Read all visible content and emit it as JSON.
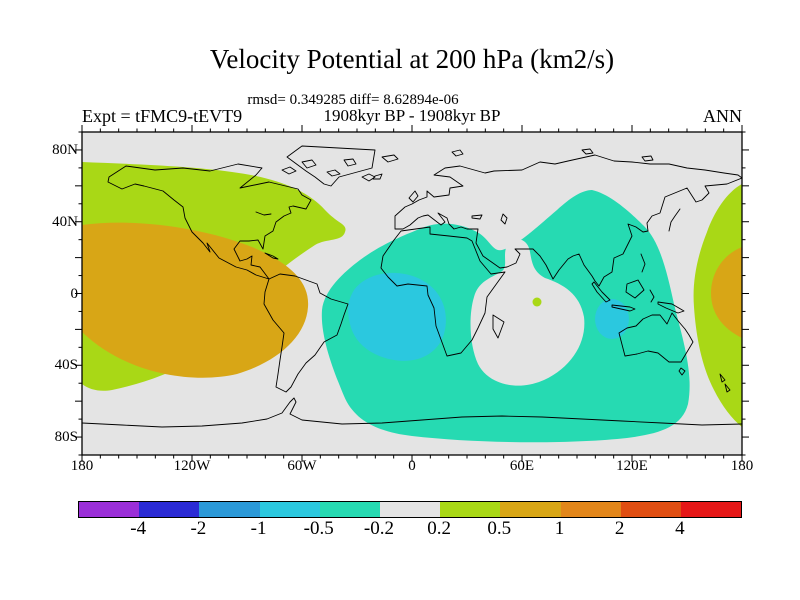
{
  "header": {
    "title": "Velocity Potential at 200 hPa (km2/s)",
    "stats_line": "rmsd= 0.349285 diff= 8.62894e-06",
    "run_line": "1908kyr BP - 1908kyr BP",
    "experiment_label": "Expt = tFMC9-tEVT9",
    "season_label": "ANN"
  },
  "chart_data": {
    "type": "heatmap",
    "subtype": "filled-contour-world-map",
    "title": "Velocity Potential at 200 hPa (km2/s)",
    "variable": "velocity potential",
    "pressure_level": "200 hPa",
    "units": "km2/s",
    "rmsd": 0.349285,
    "diff": "8.62894e-06",
    "experiment": "tFMC9-tEVT9",
    "period": "1908kyr BP - 1908kyr BP",
    "season": "ANN",
    "projection": "equirectangular",
    "x_axis": {
      "labels": [
        "180",
        "120W",
        "60W",
        "0",
        "60E",
        "120E",
        "180"
      ],
      "range_deg": [
        -180,
        180
      ],
      "minor_tick_deg": 10,
      "major_tick_deg": 60
    },
    "y_axis": {
      "ticks": [
        {
          "label": "80N",
          "lat": 80
        },
        {
          "label": "40N",
          "lat": 40
        },
        {
          "label": "0",
          "lat": 0
        },
        {
          "label": "40S",
          "lat": -40
        },
        {
          "label": "80S",
          "lat": -80
        }
      ],
      "range_deg": [
        -90,
        90
      ],
      "minor_tick_deg": 10,
      "major_tick_deg": 20
    },
    "contour_levels": [
      -4,
      -2,
      -1,
      -0.5,
      -0.2,
      0.2,
      0.5,
      1,
      2,
      4
    ],
    "colorbar": {
      "colors": [
        "#9B2FD8",
        "#2B2BD5",
        "#2B99D8",
        "#2BC8DF",
        "#26DAB2",
        "#E4E4E4",
        "#A9D816",
        "#D8A616",
        "#E2861A",
        "#E04E12",
        "#E51717"
      ],
      "boundary_labels": [
        "-4",
        "-2",
        "-1",
        "-0.5",
        "-0.2",
        "0.2",
        "0.5",
        "1",
        "2",
        "4"
      ]
    },
    "fill_colors_used_on_map": {
      "background_-0.2_to_0.2": "#E4E4E4",
      "teal_-0.5_to_-0.2": "#26DAB2",
      "cyan_-1_to_-0.5": "#2BC8DF",
      "yellowgreen_0.2_to_0.5": "#A9D816",
      "gold_0.5_to_1": "#D8A616"
    },
    "filled_regions": [
      {
        "level_range": "0.5 to 1",
        "color": "#D8A616",
        "where": "large blob over central/eastern North Pacific centered near 150W, 15N; wraps across the dateline as a blob at the map's right edge near 170E, 5S"
      },
      {
        "level_range": "0.2 to 0.5",
        "color": "#A9D816",
        "where": "broad region over North Pacific, Alaska and western/central Canada down past the equator; band along the right map edge around the dateline; tiny spot in the central Indian Ocean near 68E, 5S"
      },
      {
        "level_range": "-0.5 to -0.2",
        "color": "#26DAB2",
        "where": "very large belt from the tropical/South Atlantic across Africa, the Indian Ocean rim, south and east Asia, the Maritime Continent, Australia and the Southern Ocean to about 60S"
      },
      {
        "level_range": "-1 to -0.5",
        "color": "#2BC8DF",
        "where": "blob over the Gulf of Guinea / equatorial Atlantic and west-central Africa; small blob southwest of Sumatra near 100E, 10S"
      },
      {
        "level_range": "-0.2 to 0.2",
        "color": "#E4E4E4",
        "where": "background: poles, Europe, most of the Americas, eastern North America/Atlantic, central Indian Ocean oval hole"
      }
    ],
    "grid": false,
    "legend_position": "horizontal colorbar below map"
  }
}
